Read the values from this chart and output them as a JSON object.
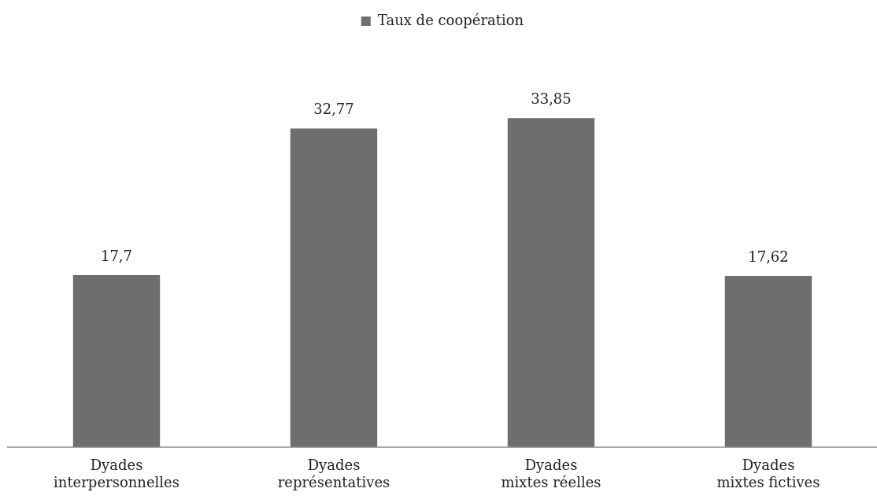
{
  "chart_data": {
    "type": "bar",
    "categories": [
      "Dyades\ninterpersonnelles",
      "Dyades\nreprésentatives",
      "Dyades\nmixtes réelles",
      "Dyades\nmixtes fictives"
    ],
    "series": [
      {
        "name": "Taux de coopération",
        "color": "#6e6e6e",
        "values": [
          17.7,
          32.77,
          33.85,
          17.62
        ],
        "value_labels": [
          "17,7",
          "32,77",
          "33,85",
          "17,62"
        ]
      }
    ],
    "legend": "top",
    "grid": false
  }
}
